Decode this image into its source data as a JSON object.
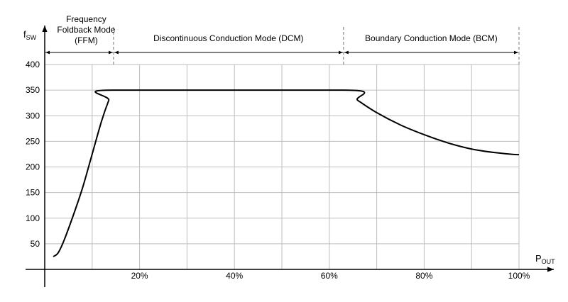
{
  "chart_data": {
    "type": "line",
    "xlabel": "P",
    "xlabel_sub": "OUT",
    "ylabel": "f",
    "ylabel_sub": "SW",
    "xlim": [
      0,
      100
    ],
    "ylim": [
      0,
      400
    ],
    "y_ticks": [
      50,
      100,
      150,
      200,
      250,
      300,
      350,
      400
    ],
    "y_tick_labels": [
      "50",
      "100",
      "150",
      "200",
      "250",
      "300",
      "350",
      "400"
    ],
    "x_ticks": [
      20,
      40,
      60,
      80,
      100
    ],
    "x_tick_labels": [
      "20%",
      "40%",
      "60%",
      "80%",
      "100%"
    ],
    "grid": true,
    "modes": [
      {
        "label_lines": [
          "Frequency",
          "Foldback Mode",
          "(FFM)"
        ],
        "x_start": 0,
        "x_end": 14.5
      },
      {
        "label_lines": [
          "Discontinuous Conduction Mode (DCM)"
        ],
        "x_start": 14.5,
        "x_end": 63
      },
      {
        "label_lines": [
          "Boundary Conduction Mode (BCM)"
        ],
        "x_start": 63,
        "x_end": 100
      }
    ],
    "series": [
      {
        "x": [
          1.8,
          2.8,
          4,
          6,
          8,
          10,
          12,
          13.5,
          14.5,
          63,
          66,
          70,
          75,
          80,
          85,
          90,
          95,
          100
        ],
        "y": [
          25,
          32,
          55,
          105,
          160,
          225,
          290,
          330,
          350,
          350,
          330,
          306,
          282,
          263,
          247,
          235,
          228,
          224
        ]
      }
    ]
  }
}
